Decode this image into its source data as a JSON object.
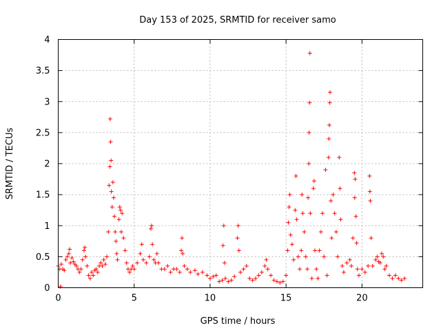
{
  "chart_data": {
    "type": "scatter",
    "title": "Day 153 of 2025, SRMTID for receiver samo",
    "xlabel": "GPS time / hours",
    "ylabel": "SRMTID / TECUs",
    "xlim": [
      0,
      24
    ],
    "ylim": [
      0,
      4
    ],
    "x_ticks": [
      0,
      5,
      10,
      15,
      20
    ],
    "y_ticks": [
      0,
      0.5,
      1,
      1.5,
      2,
      2.5,
      3,
      3.5,
      4
    ],
    "y_tick_labels": [
      "0",
      "0.5",
      "1",
      "1.5",
      "2",
      "2.5",
      "3",
      "3.5",
      "4"
    ],
    "grid": true,
    "marker": "plus",
    "color": "#ff0000",
    "series": [
      {
        "name": "SRMTID",
        "points": [
          [
            0.0,
            0.35
          ],
          [
            0.1,
            0.3
          ],
          [
            0.15,
            0.02
          ],
          [
            0.2,
            0.38
          ],
          [
            0.3,
            0.3
          ],
          [
            0.4,
            0.28
          ],
          [
            0.5,
            0.45
          ],
          [
            0.6,
            0.5
          ],
          [
            0.7,
            0.55
          ],
          [
            0.75,
            0.62
          ],
          [
            0.8,
            0.4
          ],
          [
            0.9,
            0.48
          ],
          [
            1.0,
            0.42
          ],
          [
            1.1,
            0.38
          ],
          [
            1.2,
            0.35
          ],
          [
            1.3,
            0.3
          ],
          [
            1.4,
            0.25
          ],
          [
            1.5,
            0.3
          ],
          [
            1.6,
            0.45
          ],
          [
            1.7,
            0.6
          ],
          [
            1.75,
            0.65
          ],
          [
            1.8,
            0.5
          ],
          [
            1.9,
            0.35
          ],
          [
            2.0,
            0.2
          ],
          [
            2.1,
            0.15
          ],
          [
            2.2,
            0.25
          ],
          [
            2.3,
            0.2
          ],
          [
            2.4,
            0.28
          ],
          [
            2.5,
            0.3
          ],
          [
            2.6,
            0.25
          ],
          [
            2.7,
            0.35
          ],
          [
            2.8,
            0.4
          ],
          [
            2.9,
            0.35
          ],
          [
            3.0,
            0.45
          ],
          [
            3.1,
            0.38
          ],
          [
            3.2,
            0.5
          ],
          [
            3.3,
            0.9
          ],
          [
            3.35,
            1.65
          ],
          [
            3.4,
            1.95
          ],
          [
            3.42,
            2.72
          ],
          [
            3.45,
            2.35
          ],
          [
            3.48,
            2.05
          ],
          [
            3.5,
            1.55
          ],
          [
            3.55,
            1.3
          ],
          [
            3.6,
            1.7
          ],
          [
            3.65,
            1.45
          ],
          [
            3.7,
            1.15
          ],
          [
            3.75,
            0.9
          ],
          [
            3.8,
            0.75
          ],
          [
            3.85,
            0.55
          ],
          [
            3.9,
            0.45
          ],
          [
            4.0,
            1.1
          ],
          [
            4.05,
            1.3
          ],
          [
            4.1,
            1.25
          ],
          [
            4.15,
            0.9
          ],
          [
            4.2,
            1.2
          ],
          [
            4.3,
            0.8
          ],
          [
            4.4,
            0.6
          ],
          [
            4.5,
            0.4
          ],
          [
            4.6,
            0.3
          ],
          [
            4.7,
            0.25
          ],
          [
            4.8,
            0.3
          ],
          [
            4.9,
            0.35
          ],
          [
            5.0,
            0.3
          ],
          [
            5.2,
            0.4
          ],
          [
            5.4,
            0.55
          ],
          [
            5.5,
            0.7
          ],
          [
            5.6,
            0.45
          ],
          [
            5.8,
            0.4
          ],
          [
            6.0,
            0.5
          ],
          [
            6.1,
            0.95
          ],
          [
            6.15,
            1.0
          ],
          [
            6.2,
            0.7
          ],
          [
            6.3,
            0.45
          ],
          [
            6.4,
            0.4
          ],
          [
            6.5,
            0.55
          ],
          [
            6.6,
            0.4
          ],
          [
            6.8,
            0.3
          ],
          [
            7.0,
            0.3
          ],
          [
            7.2,
            0.35
          ],
          [
            7.4,
            0.25
          ],
          [
            7.6,
            0.3
          ],
          [
            7.8,
            0.3
          ],
          [
            8.0,
            0.25
          ],
          [
            8.1,
            0.6
          ],
          [
            8.15,
            0.8
          ],
          [
            8.2,
            0.55
          ],
          [
            8.3,
            0.35
          ],
          [
            8.5,
            0.3
          ],
          [
            8.7,
            0.25
          ],
          [
            9.0,
            0.28
          ],
          [
            9.2,
            0.22
          ],
          [
            9.5,
            0.25
          ],
          [
            9.8,
            0.2
          ],
          [
            10.0,
            0.15
          ],
          [
            10.2,
            0.18
          ],
          [
            10.4,
            0.2
          ],
          [
            10.6,
            0.1
          ],
          [
            10.8,
            0.12
          ],
          [
            10.85,
            0.68
          ],
          [
            10.9,
            1.0
          ],
          [
            10.95,
            0.4
          ],
          [
            11.0,
            0.15
          ],
          [
            11.2,
            0.1
          ],
          [
            11.4,
            0.12
          ],
          [
            11.6,
            0.18
          ],
          [
            11.8,
            0.8
          ],
          [
            11.85,
            1.0
          ],
          [
            11.9,
            0.6
          ],
          [
            12.0,
            0.25
          ],
          [
            12.2,
            0.3
          ],
          [
            12.4,
            0.35
          ],
          [
            12.6,
            0.15
          ],
          [
            12.8,
            0.12
          ],
          [
            13.0,
            0.15
          ],
          [
            13.2,
            0.2
          ],
          [
            13.4,
            0.25
          ],
          [
            13.6,
            0.35
          ],
          [
            13.7,
            0.45
          ],
          [
            13.8,
            0.3
          ],
          [
            14.0,
            0.2
          ],
          [
            14.2,
            0.12
          ],
          [
            14.4,
            0.1
          ],
          [
            14.6,
            0.08
          ],
          [
            14.8,
            0.1
          ],
          [
            15.0,
            0.2
          ],
          [
            15.1,
            0.6
          ],
          [
            15.15,
            1.05
          ],
          [
            15.2,
            1.3
          ],
          [
            15.25,
            1.5
          ],
          [
            15.3,
            0.85
          ],
          [
            15.4,
            0.7
          ],
          [
            15.5,
            0.45
          ],
          [
            15.6,
            1.25
          ],
          [
            15.65,
            1.8
          ],
          [
            15.7,
            1.1
          ],
          [
            15.8,
            0.5
          ],
          [
            15.9,
            0.3
          ],
          [
            16.0,
            0.6
          ],
          [
            16.05,
            1.5
          ],
          [
            16.1,
            1.2
          ],
          [
            16.2,
            0.9
          ],
          [
            16.3,
            0.5
          ],
          [
            16.4,
            0.3
          ],
          [
            16.45,
            1.45
          ],
          [
            16.5,
            2.0
          ],
          [
            16.52,
            2.5
          ],
          [
            16.55,
            2.98
          ],
          [
            16.57,
            3.78
          ],
          [
            16.6,
            1.2
          ],
          [
            16.7,
            0.15
          ],
          [
            16.8,
            1.6
          ],
          [
            16.85,
            1.72
          ],
          [
            16.9,
            0.6
          ],
          [
            17.0,
            0.3
          ],
          [
            17.1,
            0.15
          ],
          [
            17.2,
            0.6
          ],
          [
            17.3,
            0.9
          ],
          [
            17.4,
            1.2
          ],
          [
            17.5,
            0.5
          ],
          [
            17.6,
            1.9
          ],
          [
            17.7,
            0.2
          ],
          [
            17.8,
            2.1
          ],
          [
            17.82,
            2.4
          ],
          [
            17.85,
            2.62
          ],
          [
            17.88,
            2.98
          ],
          [
            17.9,
            3.15
          ],
          [
            17.95,
            1.4
          ],
          [
            18.0,
            0.8
          ],
          [
            18.1,
            1.5
          ],
          [
            18.2,
            1.2
          ],
          [
            18.3,
            0.9
          ],
          [
            18.4,
            0.5
          ],
          [
            18.5,
            2.1
          ],
          [
            18.55,
            1.6
          ],
          [
            18.6,
            1.1
          ],
          [
            18.7,
            0.35
          ],
          [
            18.8,
            0.25
          ],
          [
            19.0,
            0.4
          ],
          [
            19.2,
            0.45
          ],
          [
            19.3,
            0.35
          ],
          [
            19.4,
            0.8
          ],
          [
            19.5,
            1.85
          ],
          [
            19.52,
            1.45
          ],
          [
            19.55,
            1.75
          ],
          [
            19.6,
            1.15
          ],
          [
            19.65,
            0.72
          ],
          [
            19.7,
            0.3
          ],
          [
            19.8,
            0.2
          ],
          [
            20.0,
            0.3
          ],
          [
            20.2,
            0.25
          ],
          [
            20.4,
            0.35
          ],
          [
            20.5,
            1.8
          ],
          [
            20.52,
            1.55
          ],
          [
            20.55,
            1.4
          ],
          [
            20.6,
            0.8
          ],
          [
            20.7,
            0.35
          ],
          [
            20.9,
            0.45
          ],
          [
            21.0,
            0.5
          ],
          [
            21.1,
            0.42
          ],
          [
            21.2,
            0.4
          ],
          [
            21.3,
            0.55
          ],
          [
            21.4,
            0.5
          ],
          [
            21.5,
            0.3
          ],
          [
            21.6,
            0.35
          ],
          [
            21.8,
            0.2
          ],
          [
            22.0,
            0.15
          ],
          [
            22.2,
            0.2
          ],
          [
            22.4,
            0.15
          ],
          [
            22.6,
            0.12
          ],
          [
            22.8,
            0.15
          ]
        ]
      }
    ]
  }
}
